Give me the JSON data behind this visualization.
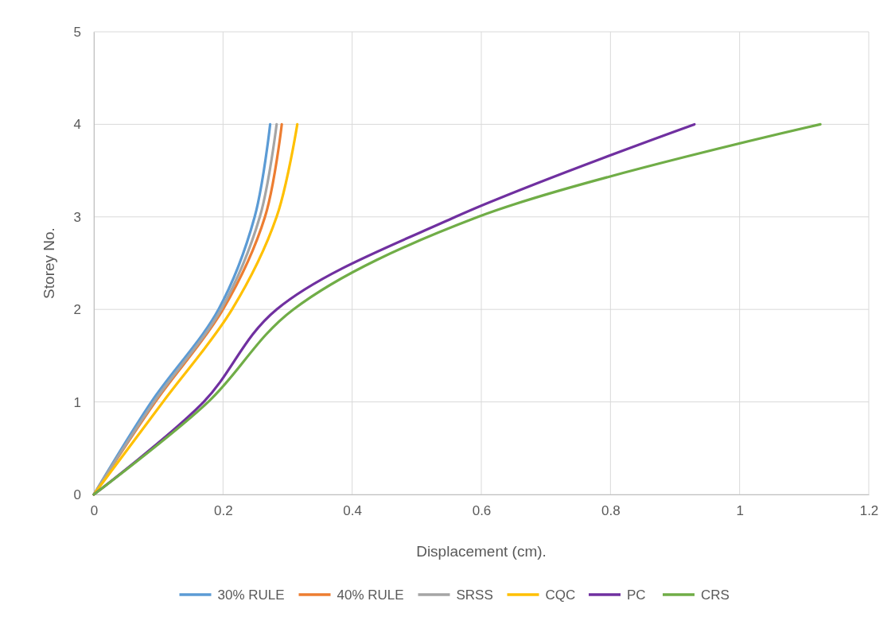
{
  "chart_data": {
    "type": "line",
    "xlabel": "Displacement (cm).",
    "ylabel": "Storey No.",
    "xlim": [
      0,
      1.2
    ],
    "xticks": [
      0,
      0.2,
      0.4,
      0.6,
      0.8,
      1,
      1.2
    ],
    "ylim": [
      0,
      5
    ],
    "yticks": [
      0,
      1,
      2,
      3,
      4,
      5
    ],
    "grid": true,
    "legend": "bottom",
    "marker": "none",
    "line_style": "solid",
    "series": [
      {
        "name": "30% RULE",
        "color": "#5b9bd5",
        "x": [
          0,
          0.089,
          0.193,
          0.249,
          0.273
        ],
        "values": [
          0,
          1,
          2,
          3,
          4
        ]
      },
      {
        "name": "40% RULE",
        "color": "#ed7d31",
        "x": [
          0,
          0.095,
          0.2,
          0.265,
          0.291
        ],
        "values": [
          0,
          1,
          2,
          3,
          4
        ]
      },
      {
        "name": "SRSS",
        "color": "#a5a5a5",
        "x": [
          0,
          0.093,
          0.197,
          0.257,
          0.283
        ],
        "values": [
          0,
          1,
          2,
          3,
          4
        ]
      },
      {
        "name": "CQC",
        "color": "#ffc000",
        "x": [
          0,
          0.107,
          0.214,
          0.283,
          0.315
        ],
        "values": [
          0,
          1,
          2,
          3,
          4
        ]
      },
      {
        "name": "PC",
        "color": "#7030a0",
        "x": [
          0,
          0.17,
          0.283,
          0.56,
          0.93
        ],
        "values": [
          0,
          1,
          2,
          3,
          4
        ]
      },
      {
        "name": "CRS",
        "color": "#70ad47",
        "x": [
          0,
          0.177,
          0.309,
          0.595,
          1.125
        ],
        "values": [
          0,
          1,
          2,
          3,
          4
        ]
      }
    ]
  }
}
